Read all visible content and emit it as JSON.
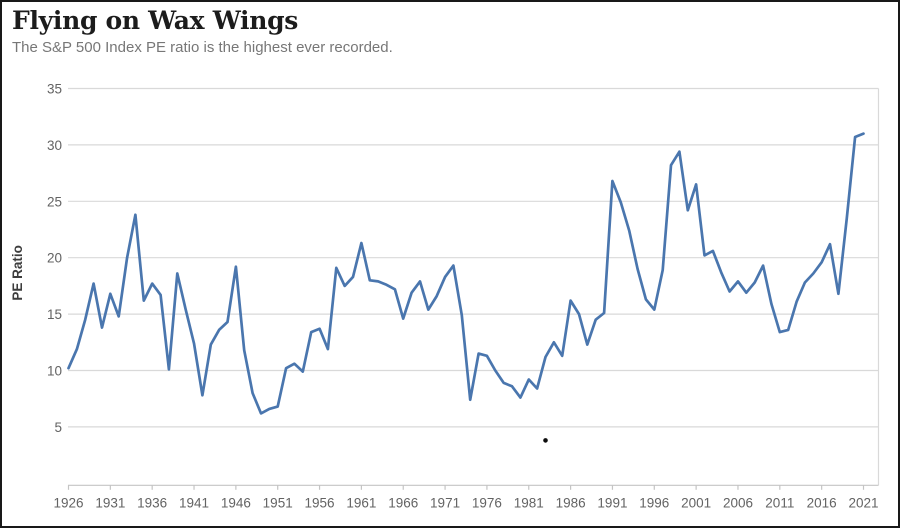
{
  "header": {
    "title": "Flying on Wax Wings",
    "subtitle": "The S&P 500 Index PE ratio is the highest ever recorded."
  },
  "chart_data": {
    "type": "line",
    "title": "Flying on Wax Wings",
    "subtitle": "The S&P 500 Index PE ratio is the highest ever recorded.",
    "xlabel": "",
    "ylabel": "PE Ratio",
    "ylim": [
      0,
      35
    ],
    "grid": true,
    "legend_position": "none",
    "yticks": [
      5,
      10,
      15,
      20,
      25,
      30,
      35
    ],
    "xticks": [
      1926,
      1931,
      1936,
      1941,
      1946,
      1951,
      1956,
      1961,
      1966,
      1971,
      1976,
      1981,
      1986,
      1991,
      1996,
      2001,
      2006,
      2011,
      2016,
      2021
    ],
    "series": [
      {
        "name": "S&P 500 Index PE ratio",
        "x_start": 1926,
        "x_end": 2021,
        "values": [
          10.2,
          11.9,
          14.5,
          17.7,
          13.8,
          16.8,
          14.8,
          20.0,
          23.8,
          16.2,
          17.7,
          16.7,
          10.1,
          18.6,
          15.4,
          12.4,
          7.8,
          12.3,
          13.6,
          14.3,
          19.2,
          11.8,
          8.0,
          6.2,
          6.6,
          6.8,
          10.2,
          10.6,
          9.9,
          13.4,
          13.7,
          11.9,
          19.1,
          17.5,
          18.3,
          21.3,
          18.0,
          17.9,
          17.6,
          17.2,
          14.6,
          16.9,
          17.9,
          15.4,
          16.6,
          18.3,
          19.3,
          14.9,
          7.4,
          11.5,
          11.3,
          10.0,
          8.9,
          8.6,
          7.6,
          9.2,
          8.4,
          11.2,
          12.5,
          11.3,
          16.2,
          15.0,
          12.3,
          14.5,
          15.1,
          26.8,
          24.9,
          22.4,
          19.0,
          16.3,
          15.4,
          18.9,
          28.2,
          29.4,
          24.2,
          26.5,
          20.2,
          20.6,
          18.7,
          17.0,
          17.9,
          16.9,
          17.8,
          19.3,
          15.9,
          13.4,
          13.6,
          16.1,
          17.8,
          18.6,
          19.6,
          21.2,
          16.8,
          23.5,
          30.7,
          31.0
        ]
      }
    ],
    "stray_dot": {
      "year": 1983,
      "value": 3.8
    },
    "colors": {
      "line": "#4a76ae",
      "grid": "#d9d9d9",
      "axis": "#c4c4c4",
      "tick_text": "#636363",
      "ylabel_text": "#3d3d3d",
      "dot": "#0d0d0d"
    }
  }
}
